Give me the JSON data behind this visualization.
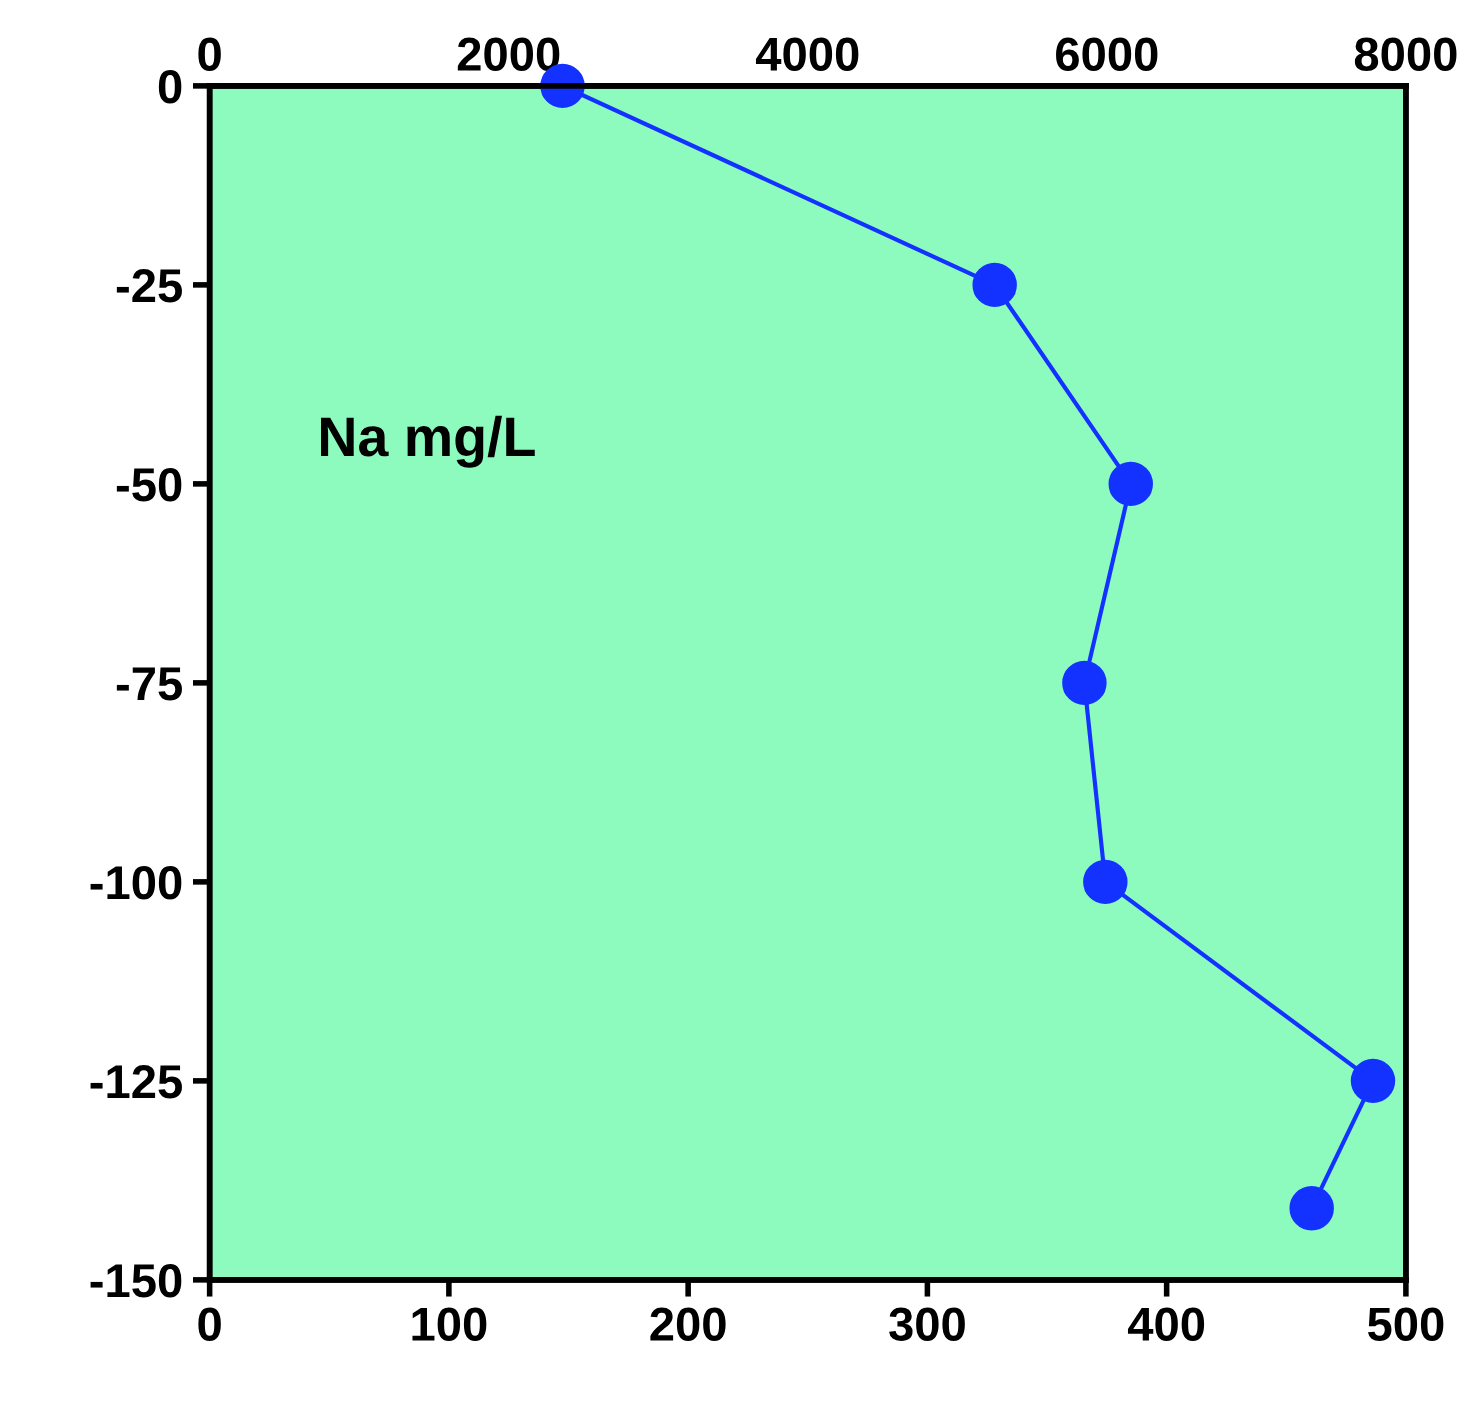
{
  "chart_data": {
    "type": "line",
    "xlim": [
      0,
      500
    ],
    "xticks": [
      0,
      100,
      200,
      300,
      400,
      500
    ],
    "x2lim": [
      0,
      8000
    ],
    "x2ticks": [
      0,
      2000,
      4000,
      6000,
      8000
    ],
    "ylim": [
      -150,
      0
    ],
    "yticks": [
      0,
      -25,
      -50,
      -75,
      -100,
      -125,
      -150
    ],
    "series": [
      {
        "axis": "x2",
        "color": "#1432ff",
        "x": [
          2360,
          5250,
          6160,
          5850,
          5990,
          7780,
          7370
        ],
        "values": [
          0,
          -25,
          -50,
          -75,
          -100,
          -125,
          -141
        ]
      }
    ],
    "annotations": [
      "Na mg/L"
    ],
    "marker": "circle",
    "line_style": "solid",
    "grid": false
  }
}
